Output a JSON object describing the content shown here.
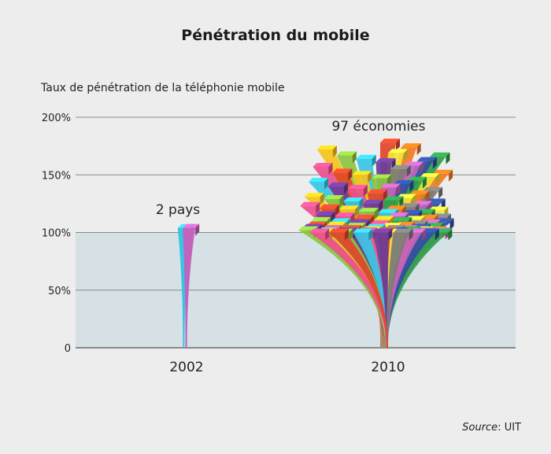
{
  "chart_data": {
    "type": "bar",
    "title": "Pénétration du mobile",
    "ylabel": "Taux de pénétration de la téléphonie mobile",
    "xlabel": "",
    "ylim": [
      0,
      200
    ],
    "yticks": [
      0,
      50,
      100,
      150,
      200
    ],
    "ytick_labels": [
      "0",
      "50%",
      "100%",
      "150%",
      "200%"
    ],
    "categories": [
      "2002",
      "2010"
    ],
    "shaded_band": [
      0,
      100
    ],
    "grid": true,
    "groups": [
      {
        "category": "2002",
        "annotation": "2 pays",
        "values": [
          104,
          104
        ],
        "colors": [
          "#35c6e6",
          "#c263bd"
        ]
      },
      {
        "category": "2010",
        "annotation": "97 économies",
        "values": [
          178,
          174,
          172,
          169,
          167,
          166,
          164,
          162,
          161,
          158,
          157,
          155,
          152,
          151,
          150,
          148,
          147,
          145,
          144,
          142,
          140,
          139,
          138,
          136,
          134,
          133,
          131,
          130,
          129,
          128,
          127,
          126,
          125,
          124,
          123,
          122,
          121,
          120,
          120,
          119,
          118,
          117,
          117,
          116,
          115,
          114,
          114,
          113,
          112,
          112,
          111,
          111,
          110,
          110,
          109,
          109,
          108,
          108,
          107,
          107,
          106,
          106,
          106,
          105,
          105,
          105,
          104,
          104,
          104,
          103,
          103,
          103,
          103,
          102,
          102,
          102,
          102,
          102,
          101,
          101,
          101,
          101,
          101,
          101,
          101,
          100,
          100,
          100,
          100,
          100,
          100,
          100,
          100,
          100,
          100,
          100,
          100
        ],
        "colors": [
          "#e0452a",
          "#f47a1f",
          "#f6c21c",
          "#f4e33a",
          "#8cc63f",
          "#2e9e48",
          "#35c6e6",
          "#2f4fa2",
          "#6a3d9a",
          "#c263bd",
          "#ec4f8e",
          "#7a7a7a"
        ]
      }
    ]
  },
  "source": {
    "label": "Source",
    "value": ": UIT"
  }
}
